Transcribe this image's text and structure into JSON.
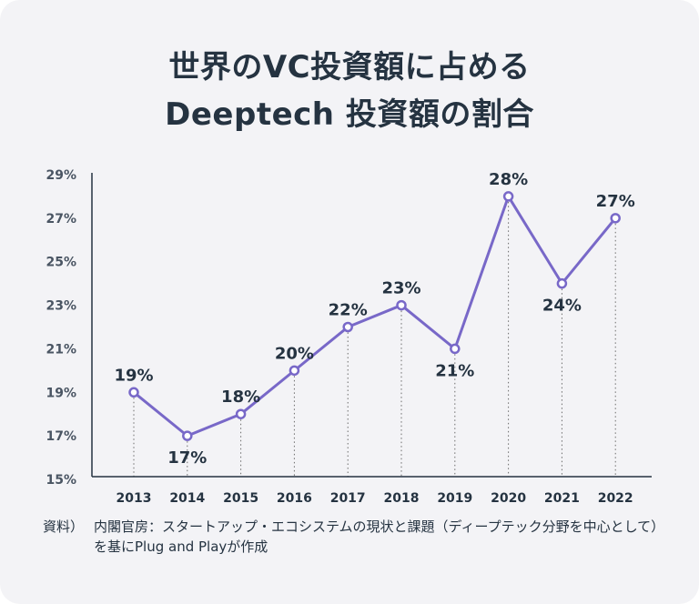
{
  "title": {
    "line1": "世界のVC投資額に占める",
    "line2": "Deeptech 投資額の割合"
  },
  "chart_data": {
    "type": "line",
    "title": "世界のVC投資額に占めるDeeptech 投資額の割合",
    "categories": [
      "2013",
      "2014",
      "2015",
      "2016",
      "2017",
      "2018",
      "2019",
      "2020",
      "2021",
      "2022"
    ],
    "values": [
      19,
      17,
      18,
      20,
      22,
      23,
      21,
      28,
      24,
      27
    ],
    "data_labels": [
      "19%",
      "17%",
      "18%",
      "20%",
      "22%",
      "23%",
      "21%",
      "28%",
      "24%",
      "27%"
    ],
    "ylim": [
      15,
      29
    ],
    "yticks": [
      "15%",
      "17%",
      "19%",
      "21%",
      "23%",
      "25%",
      "27%",
      "29%"
    ],
    "xlabel": "",
    "ylabel": "",
    "grid": false,
    "line_color": "#7868c8",
    "guide_color": "#6b6b6b"
  },
  "source": {
    "label": "資料）",
    "text": "内閣官房：スタートアップ・エコシステムの現状と課題（ディープテック分野を中心として）を基にPlug and Playが作成"
  }
}
